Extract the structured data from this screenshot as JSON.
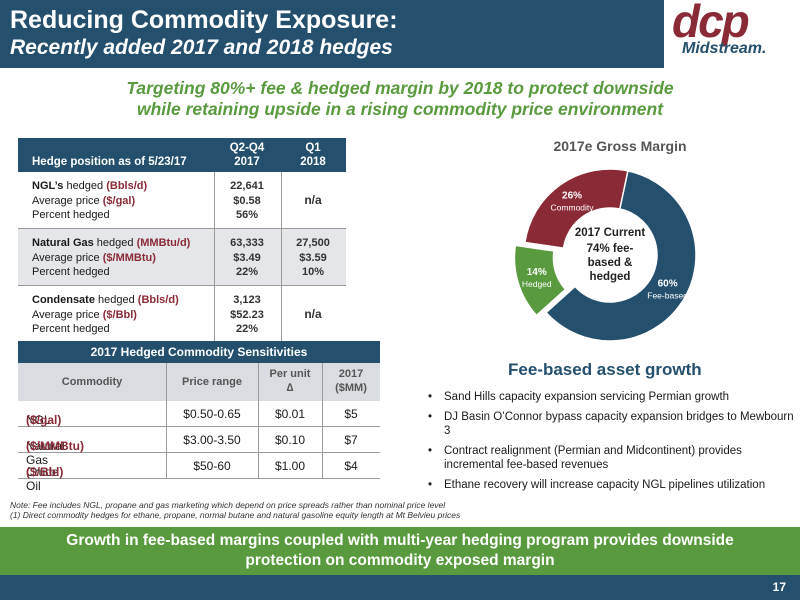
{
  "header": {
    "title": "Reducing Commodity Exposure:",
    "subtitle": "Recently added 2017 and 2018 hedges",
    "logo_top": "dcp",
    "logo_bottom": "Midstream."
  },
  "tagline": {
    "line1": "Targeting 80%+ fee & hedged margin by 2018 to protect downside",
    "line2": "while retaining upside in a rising commodity price environment"
  },
  "hedge_table": {
    "header_label": "Hedge position as of 5/23/17",
    "col1": [
      "Q2-Q4",
      "2017"
    ],
    "col2": [
      "Q1",
      "2018"
    ],
    "groups": [
      {
        "name": "NGL’s",
        "name_suffix": " hedged ",
        "unit": "(Bbls/d)",
        "price_label": "Average price ",
        "price_unit": "($/gal)",
        "pct_label": "Percent hedged",
        "v1": [
          "22,641",
          "$0.58",
          "56%"
        ],
        "v2_na": "n/a"
      },
      {
        "name": "Natural Gas",
        "name_suffix": " hedged ",
        "unit": "(MMBtu/d)",
        "price_label": "Average price ",
        "price_unit": "($/MMBtu)",
        "pct_label": "Percent hedged",
        "v1": [
          "63,333",
          "$3.49",
          "22%"
        ],
        "v2": [
          "27,500",
          "$3.59",
          "10%"
        ]
      },
      {
        "name": "Condensate",
        "name_suffix": " hedged ",
        "unit": "(Bbls/d)",
        "price_label": "Average price ",
        "price_unit": "($/Bbl)",
        "pct_label": "Percent hedged",
        "v1": [
          "3,123",
          "$52.23",
          "22%"
        ],
        "v2_na": "n/a"
      }
    ]
  },
  "sens_table": {
    "title": "2017 Hedged Commodity Sensitivities",
    "headers": {
      "commodity": "Commodity",
      "range": "Price range",
      "per_unit": [
        "Per unit",
        "∆"
      ],
      "mm": [
        "2017",
        "($MM)"
      ]
    },
    "rows": [
      {
        "name": "NGL ",
        "unit": "($/gal)",
        "range": "$0.50-0.65",
        "per_unit": "$0.01",
        "mm": "$5"
      },
      {
        "name": "Natural Gas ",
        "unit": "($/MMBtu)",
        "range": "$3.00-3.50",
        "per_unit": "$0.10",
        "mm": "$7"
      },
      {
        "name": "Crude Oil ",
        "unit": "($/Bbl)",
        "range": "$50-60",
        "per_unit": "$1.00",
        "mm": "$4"
      }
    ]
  },
  "chart_data": {
    "type": "pie",
    "title": "2017e Gross Margin",
    "center_label": [
      "2017 Current",
      "74% fee-",
      "based &",
      "hedged"
    ],
    "slices": [
      {
        "label": "Fee-based",
        "value": 60,
        "pct_label": "60%",
        "color": "#24506e"
      },
      {
        "label": "Hedged",
        "value": 14,
        "pct_label": "14%",
        "color": "#5a9a3e"
      },
      {
        "label": "Commodity",
        "value": 26,
        "pct_label": "26%",
        "color": "#8a2a36"
      }
    ]
  },
  "fee_growth": {
    "title": "Fee-based asset growth",
    "bullets": [
      "Sand Hills capacity expansion servicing Permian growth",
      "DJ Basin O’Connor bypass capacity expansion bridges to Mewbourn 3",
      "Contract realignment (Permian and Midcontinent) provides incremental fee-based  revenues",
      "Ethane recovery will increase capacity NGL pipelines utilization"
    ]
  },
  "notes": {
    "line1": "Note: Fee includes NGL, propane and gas marketing which depend on price spreads rather than nominal price level",
    "line2": "(1) Direct commodity  hedges for ethane, propane, normal butane and natural gasoline equity length at Mt Belvieu prices"
  },
  "footer": {
    "line1": "Growth in fee-based margins coupled with multi-year hedging program provides downside",
    "line2": "protection on commodity exposed margin"
  },
  "page_number": "17",
  "colors": {
    "navy": "#24506e",
    "green": "#5a9a3e",
    "maroon": "#8a2a36"
  }
}
